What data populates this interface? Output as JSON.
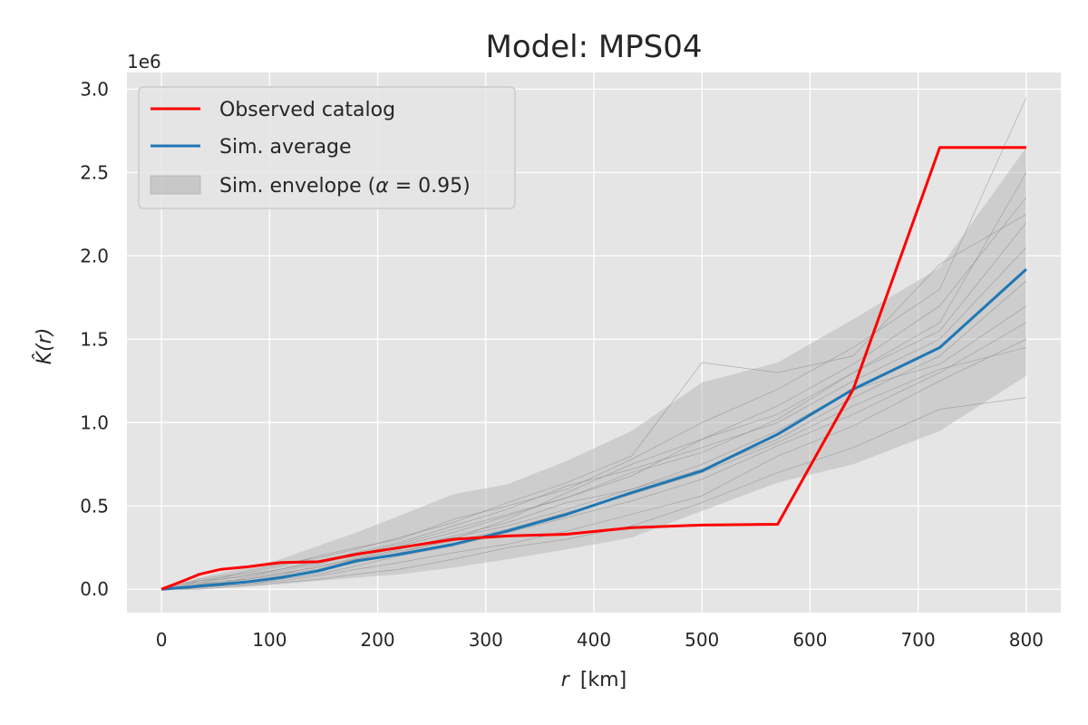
{
  "chart_data": {
    "type": "line",
    "title": "Model: MPS04",
    "xlabel_var": "r",
    "xlabel_unit": "[km]",
    "ylabel": "K̂(r)",
    "y_offset_label": "1e6",
    "xlim": [
      -32,
      832
    ],
    "ylim": [
      -0.14,
      3.1
    ],
    "xticks": [
      0,
      100,
      200,
      300,
      400,
      500,
      600,
      700,
      800
    ],
    "xtick_labels": [
      "0",
      "100",
      "200",
      "300",
      "400",
      "500",
      "600",
      "700",
      "800"
    ],
    "yticks": [
      0.0,
      0.5,
      1.0,
      1.5,
      2.0,
      2.5,
      3.0
    ],
    "ytick_labels": [
      "0.0",
      "0.5",
      "1.0",
      "1.5",
      "2.0",
      "2.5",
      "3.0"
    ],
    "grid": true,
    "legend_position": "top-left",
    "x": [
      0,
      20,
      35,
      55,
      80,
      110,
      145,
      180,
      220,
      270,
      320,
      375,
      435,
      500,
      570,
      640,
      720,
      800
    ],
    "series": [
      {
        "name": "Observed catalog",
        "color": "#ff0000",
        "kind": "line",
        "values": [
          0.0,
          0.05,
          0.09,
          0.12,
          0.135,
          0.16,
          0.165,
          0.21,
          0.25,
          0.3,
          0.32,
          0.33,
          0.37,
          0.385,
          0.39,
          1.2,
          2.65,
          2.65
        ]
      },
      {
        "name": "Sim. average",
        "color": "#1f77b4",
        "kind": "line",
        "values": [
          0.0,
          0.01,
          0.02,
          0.03,
          0.045,
          0.07,
          0.11,
          0.17,
          0.21,
          0.27,
          0.35,
          0.45,
          0.58,
          0.71,
          0.93,
          1.2,
          1.45,
          1.92
        ]
      }
    ],
    "envelope": {
      "name": "Sim. envelope (α = 0.95)",
      "legend_prefix": "Sim. envelope (",
      "legend_alpha": "α",
      "legend_suffix": " = 0.95)",
      "color": "#b0b0b0",
      "lower": [
        0.0,
        0.0,
        0.0,
        0.01,
        0.02,
        0.03,
        0.05,
        0.07,
        0.09,
        0.13,
        0.18,
        0.24,
        0.31,
        0.47,
        0.64,
        0.75,
        0.95,
        1.28
      ],
      "upper": [
        0.0,
        0.04,
        0.07,
        0.1,
        0.13,
        0.18,
        0.26,
        0.34,
        0.44,
        0.57,
        0.63,
        0.77,
        0.95,
        1.24,
        1.36,
        1.62,
        1.93,
        2.65
      ]
    },
    "sim_lines": {
      "color": "#888888",
      "values": [
        [
          0.0,
          0.02,
          0.05,
          0.06,
          0.08,
          0.11,
          0.15,
          0.21,
          0.27,
          0.36,
          0.45,
          0.55,
          0.68,
          0.9,
          1.05,
          1.3,
          1.55,
          2.2
        ],
        [
          0.0,
          0.0,
          0.01,
          0.02,
          0.03,
          0.05,
          0.08,
          0.12,
          0.16,
          0.22,
          0.27,
          0.35,
          0.45,
          0.56,
          0.8,
          0.98,
          1.25,
          1.5
        ],
        [
          0.0,
          0.01,
          0.03,
          0.05,
          0.06,
          0.09,
          0.12,
          0.18,
          0.24,
          0.32,
          0.4,
          0.52,
          0.6,
          0.75,
          0.95,
          1.2,
          1.35,
          1.7
        ],
        [
          0.0,
          0.03,
          0.06,
          0.08,
          0.1,
          0.14,
          0.2,
          0.25,
          0.3,
          0.42,
          0.5,
          0.6,
          0.78,
          1.0,
          1.2,
          1.45,
          1.8,
          2.95
        ],
        [
          0.0,
          0.0,
          0.0,
          0.01,
          0.02,
          0.04,
          0.06,
          0.09,
          0.12,
          0.18,
          0.25,
          0.3,
          0.38,
          0.52,
          0.7,
          0.85,
          1.08,
          1.15
        ],
        [
          0.0,
          0.02,
          0.04,
          0.04,
          0.07,
          0.1,
          0.13,
          0.19,
          0.25,
          0.31,
          0.38,
          0.48,
          0.6,
          0.72,
          0.9,
          1.15,
          1.4,
          1.85
        ],
        [
          0.0,
          0.01,
          0.02,
          0.03,
          0.05,
          0.08,
          0.11,
          0.16,
          0.22,
          0.3,
          0.42,
          0.58,
          0.75,
          0.9,
          1.1,
          1.35,
          1.7,
          2.35
        ],
        [
          0.0,
          0.04,
          0.05,
          0.07,
          0.09,
          0.12,
          0.17,
          0.22,
          0.28,
          0.38,
          0.48,
          0.62,
          0.72,
          0.85,
          1.0,
          1.25,
          1.5,
          2.05
        ],
        [
          0.0,
          0.0,
          0.01,
          0.02,
          0.03,
          0.06,
          0.09,
          0.14,
          0.2,
          0.26,
          0.34,
          0.43,
          0.53,
          0.66,
          0.86,
          1.05,
          1.3,
          1.6
        ],
        [
          0.0,
          0.02,
          0.04,
          0.06,
          0.08,
          0.12,
          0.16,
          0.2,
          0.26,
          0.34,
          0.44,
          0.55,
          0.7,
          0.82,
          1.02,
          1.3,
          1.6,
          2.5
        ],
        [
          0.0,
          0.01,
          0.03,
          0.04,
          0.06,
          0.09,
          0.14,
          0.18,
          0.23,
          0.29,
          0.36,
          0.46,
          0.57,
          0.7,
          0.88,
          1.1,
          1.32,
          1.45
        ],
        [
          0.0,
          0.03,
          0.05,
          0.07,
          0.11,
          0.15,
          0.19,
          0.24,
          0.31,
          0.4,
          0.52,
          0.64,
          0.8,
          1.36,
          1.3,
          1.4,
          1.95,
          2.25
        ]
      ]
    }
  }
}
